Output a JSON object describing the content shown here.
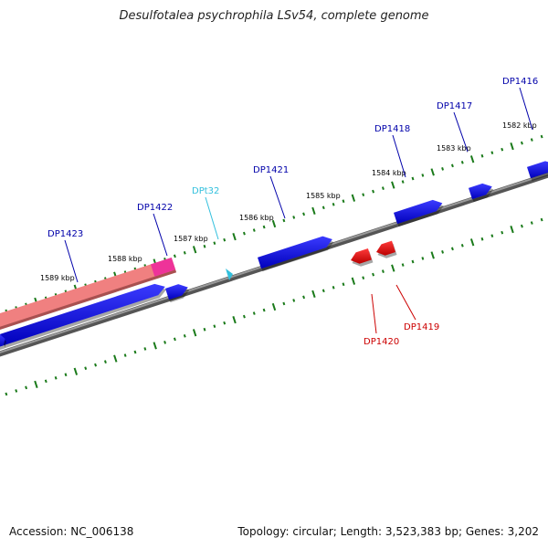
{
  "title": "Desulfotalea psychrophila LSv54, complete genome",
  "footer": {
    "accession": "Accession: NC_006138",
    "summary": "Topology: circular; Length: 3,523,383 bp; Genes: 3,202"
  },
  "colors": {
    "forward_gene": "#0000ee",
    "reverse_gene": "#ee0000",
    "trna": "#33c0dd",
    "highlight_band": "#f08080",
    "highlight_tip": "#ee3399",
    "backbone": "#7a7a7a",
    "tick": "#1a7a1a",
    "label_forward": "#0000aa",
    "label_reverse": "#cc0000",
    "label_trna": "#33c0dd"
  },
  "kbp_labels": [
    "1589 kbp",
    "1588 kbp",
    "1587 kbp",
    "1586 kbp",
    "1585 kbp",
    "1584 kbp",
    "1583 kbp",
    "1582 kbp"
  ],
  "gene_labels": [
    {
      "name": "DP1423",
      "strand": "forward"
    },
    {
      "name": "DP1422",
      "strand": "forward"
    },
    {
      "name": "DPt32",
      "strand": "trna"
    },
    {
      "name": "DP1421",
      "strand": "forward"
    },
    {
      "name": "DP1418",
      "strand": "forward"
    },
    {
      "name": "DP1417",
      "strand": "forward"
    },
    {
      "name": "DP1416",
      "strand": "forward"
    },
    {
      "name": "DP1420",
      "strand": "reverse"
    },
    {
      "name": "DP1419",
      "strand": "reverse"
    }
  ]
}
